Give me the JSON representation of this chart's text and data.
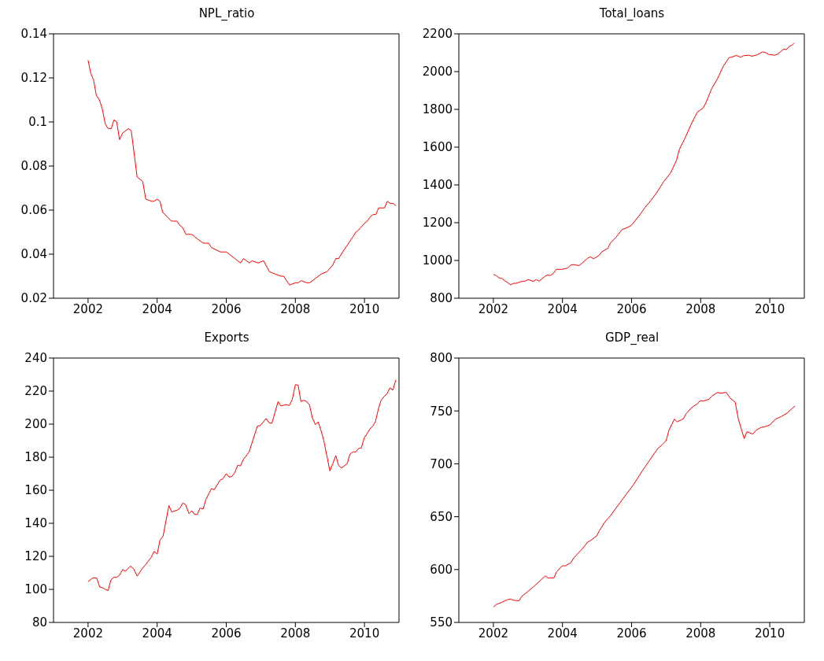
{
  "chart_data": [
    {
      "type": "line",
      "title": "NPL_ratio",
      "marker": "none",
      "xlim": [
        2001,
        2011
      ],
      "xticks": [
        2002,
        2004,
        2006,
        2008,
        2010
      ],
      "ylim": [
        0.02,
        0.14
      ],
      "yticks": [
        0.02,
        0.04,
        0.06,
        0.08,
        0.1,
        0.12,
        0.14
      ],
      "x": [
        2002.0,
        2002.08,
        2002.16,
        2002.24,
        2002.33,
        2002.41,
        2002.5,
        2002.58,
        2002.67,
        2002.75,
        2002.83,
        2002.91,
        2003.0,
        2003.17,
        2003.25,
        2003.42,
        2003.58,
        2003.67,
        2003.83,
        2003.91,
        2004.0,
        2004.08,
        2004.16,
        2004.41,
        2004.49,
        2004.57,
        2004.66,
        2004.74,
        2004.83,
        2005.0,
        2005.16,
        2005.33,
        2005.41,
        2005.49,
        2005.57,
        2005.83,
        2005.91,
        2006.0,
        2006.17,
        2006.25,
        2006.41,
        2006.5,
        2006.67,
        2006.75,
        2006.92,
        2007.08,
        2007.25,
        2007.41,
        2007.58,
        2007.66,
        2007.83,
        2008.0,
        2008.08,
        2008.17,
        2008.33,
        2008.41,
        2008.5,
        2008.58,
        2008.75,
        2008.91,
        2009.08,
        2009.17,
        2009.25,
        2009.41,
        2009.5,
        2009.67,
        2009.75,
        2009.83,
        2010.0,
        2010.08,
        2010.17,
        2010.25,
        2010.33,
        2010.41,
        2010.5,
        2010.58,
        2010.66,
        2010.75,
        2010.83,
        2010.91
      ],
      "series": [
        {
          "color": "#ff0000",
          "values": [
            0.128,
            0.122,
            0.119,
            0.112,
            0.11,
            0.106,
            0.099,
            0.097,
            0.097,
            0.101,
            0.1,
            0.092,
            0.095,
            0.097,
            0.096,
            0.075,
            0.073,
            0.065,
            0.064,
            0.064,
            0.065,
            0.064,
            0.059,
            0.055,
            0.055,
            0.055,
            0.053,
            0.052,
            0.049,
            0.049,
            0.047,
            0.045,
            0.045,
            0.045,
            0.043,
            0.041,
            0.041,
            0.041,
            0.039,
            0.038,
            0.036,
            0.038,
            0.036,
            0.037,
            0.036,
            0.037,
            0.032,
            0.031,
            0.03,
            0.03,
            0.026,
            0.027,
            0.027,
            0.028,
            0.027,
            0.027,
            0.028,
            0.029,
            0.031,
            0.032,
            0.035,
            0.038,
            0.038,
            0.042,
            0.044,
            0.048,
            0.05,
            0.051,
            0.054,
            0.055,
            0.057,
            0.058,
            0.058,
            0.061,
            0.061,
            0.061,
            0.064,
            0.063,
            0.063,
            0.062
          ]
        }
      ]
    },
    {
      "type": "line",
      "title": "Total_loans",
      "marker": "none",
      "xlim": [
        2001,
        2011
      ],
      "xticks": [
        2002,
        2004,
        2006,
        2008,
        2010
      ],
      "ylim": [
        800,
        2200
      ],
      "yticks": [
        800,
        1000,
        1200,
        1400,
        1600,
        1800,
        2000,
        2200
      ],
      "x": [
        2002.0,
        2002.08,
        2002.16,
        2002.24,
        2002.33,
        2002.5,
        2002.58,
        2002.66,
        2002.83,
        2002.91,
        2003.0,
        2003.16,
        2003.24,
        2003.32,
        2003.49,
        2003.57,
        2003.65,
        2003.74,
        2003.82,
        2003.99,
        2004.15,
        2004.23,
        2004.31,
        2004.48,
        2004.56,
        2004.73,
        2004.81,
        2004.9,
        2005.06,
        2005.14,
        2005.31,
        2005.39,
        2005.55,
        2005.72,
        2005.88,
        2005.99,
        2006.22,
        2006.39,
        2006.55,
        2006.72,
        2006.92,
        2007.13,
        2007.3,
        2007.38,
        2007.55,
        2007.72,
        2007.9,
        2008.07,
        2008.15,
        2008.32,
        2008.48,
        2008.65,
        2008.82,
        2008.9,
        2009.03,
        2009.15,
        2009.23,
        2009.4,
        2009.48,
        2009.65,
        2009.78,
        2009.86,
        2009.98,
        2010.15,
        2010.23,
        2010.4,
        2010.48,
        2010.56,
        2010.65,
        2010.7
      ],
      "series": [
        {
          "color": "#ff0000",
          "values": [
            926,
            920,
            908,
            905,
            893,
            871,
            879,
            879,
            890,
            890,
            899,
            889,
            899,
            890,
            916,
            923,
            920,
            933,
            953,
            953,
            960,
            975,
            978,
            973,
            985,
            1012,
            1019,
            1009,
            1027,
            1046,
            1064,
            1093,
            1123,
            1163,
            1175,
            1185,
            1237,
            1281,
            1316,
            1357,
            1415,
            1464,
            1530,
            1587,
            1649,
            1719,
            1785,
            1807,
            1834,
            1911,
            1960,
            2027,
            2074,
            2077,
            2086,
            2076,
            2084,
            2087,
            2081,
            2090,
            2104,
            2102,
            2090,
            2087,
            2093,
            2119,
            2117,
            2133,
            2141,
            2150
          ]
        }
      ]
    },
    {
      "type": "line",
      "title": "Exports",
      "marker": "none",
      "xlim": [
        2001,
        2011
      ],
      "xticks": [
        2002,
        2004,
        2006,
        2008,
        2010
      ],
      "ylim": [
        80,
        240
      ],
      "yticks": [
        80,
        100,
        120,
        140,
        160,
        180,
        200,
        220,
        240
      ],
      "x": [
        2002.0,
        2002.1,
        2002.17,
        2002.25,
        2002.34,
        2002.42,
        2002.5,
        2002.58,
        2002.66,
        2002.74,
        2002.83,
        2002.91,
        2003.0,
        2003.08,
        2003.23,
        2003.32,
        2003.42,
        2003.57,
        2003.65,
        2003.82,
        2003.91,
        2004.0,
        2004.08,
        2004.17,
        2004.34,
        2004.42,
        2004.58,
        2004.66,
        2004.74,
        2004.82,
        2004.92,
        2005.0,
        2005.08,
        2005.16,
        2005.24,
        2005.33,
        2005.41,
        2005.57,
        2005.65,
        2005.82,
        2005.9,
        2006.0,
        2006.08,
        2006.16,
        2006.25,
        2006.33,
        2006.41,
        2006.49,
        2006.66,
        2006.9,
        2006.99,
        2007.15,
        2007.24,
        2007.32,
        2007.5,
        2007.58,
        2007.74,
        2007.82,
        2007.91,
        2008.0,
        2008.08,
        2008.16,
        2008.25,
        2008.33,
        2008.41,
        2008.49,
        2008.58,
        2008.66,
        2008.74,
        2008.82,
        2009.0,
        2009.08,
        2009.17,
        2009.25,
        2009.33,
        2009.5,
        2009.58,
        2009.67,
        2009.75,
        2009.83,
        2009.91,
        2009.99,
        2010.16,
        2010.24,
        2010.32,
        2010.4,
        2010.48,
        2010.57,
        2010.65,
        2010.74,
        2010.82,
        2010.91
      ],
      "series": [
        {
          "color": "#ff0000",
          "values": [
            104.7,
            106.4,
            107.1,
            106.8,
            101.4,
            101.0,
            100.0,
            99.2,
            105.6,
            107.3,
            107.3,
            108.6,
            112.0,
            111.0,
            114.1,
            112.4,
            108.0,
            112.7,
            114.6,
            119.2,
            122.9,
            121.4,
            129.7,
            132.2,
            150.8,
            146.8,
            148.0,
            149.2,
            152.2,
            151.4,
            145.9,
            147.6,
            145.4,
            145.3,
            149.2,
            148.6,
            154.4,
            161.0,
            160.3,
            166.1,
            166.9,
            170.0,
            168.0,
            168.3,
            170.8,
            175.1,
            174.7,
            178.5,
            183.1,
            198.8,
            199.2,
            203.4,
            200.8,
            200.5,
            213.7,
            211.0,
            211.9,
            211.2,
            214.9,
            223.9,
            223.6,
            213.7,
            214.4,
            213.6,
            211.5,
            203.9,
            199.7,
            201.4,
            196.3,
            190.3,
            171.7,
            175.9,
            181.0,
            175.1,
            173.4,
            176.1,
            181.9,
            183.2,
            183.2,
            185.3,
            185.6,
            191.5,
            197.1,
            198.8,
            201.7,
            209.0,
            214.4,
            216.8,
            218.3,
            222.0,
            220.5,
            226.8
          ]
        }
      ]
    },
    {
      "type": "line",
      "title": "GDP_real",
      "marker": "none",
      "xlim": [
        2001,
        2011
      ],
      "xticks": [
        2002,
        2004,
        2006,
        2008,
        2010
      ],
      "ylim": [
        550,
        800
      ],
      "yticks": [
        550,
        600,
        650,
        700,
        750,
        800
      ],
      "x": [
        2002.0,
        2002.08,
        2002.24,
        2002.4,
        2002.49,
        2002.57,
        2002.74,
        2002.82,
        2002.98,
        2003.23,
        2003.5,
        2003.58,
        2003.75,
        2003.83,
        2003.99,
        2004.08,
        2004.24,
        2004.33,
        2004.56,
        2004.73,
        2004.82,
        2004.99,
        2005.07,
        2005.23,
        2005.39,
        2005.56,
        2005.81,
        2006.05,
        2006.31,
        2006.55,
        2006.76,
        2006.88,
        2007.0,
        2007.08,
        2007.24,
        2007.32,
        2007.5,
        2007.58,
        2007.74,
        2007.91,
        2007.99,
        2008.08,
        2008.24,
        2008.32,
        2008.49,
        2008.57,
        2008.74,
        2008.85,
        2009.0,
        2009.09,
        2009.26,
        2009.34,
        2009.51,
        2009.6,
        2009.76,
        2009.85,
        2010.0,
        2010.17,
        2010.33,
        2010.5,
        2010.73
      ],
      "series": [
        {
          "color": "#ff0000",
          "values": [
            564.5,
            566.9,
            569.0,
            571.4,
            572.2,
            571.1,
            570.4,
            574.6,
            578.8,
            585.7,
            594.0,
            592.1,
            592.1,
            597.9,
            603.5,
            603.5,
            606.4,
            611.2,
            619.1,
            626.0,
            627.6,
            631.8,
            636.9,
            645.1,
            650.9,
            658.6,
            669.7,
            680.0,
            693.3,
            704.7,
            714.5,
            717.9,
            721.9,
            731.7,
            742.3,
            739.7,
            742.6,
            747.4,
            753.2,
            756.9,
            759.8,
            759.3,
            761.1,
            764.0,
            767.5,
            766.7,
            767.5,
            762.2,
            758.2,
            742.3,
            723.8,
            730.4,
            728.0,
            731.7,
            734.6,
            734.9,
            736.8,
            742.3,
            744.7,
            747.9,
            754.8
          ]
        }
      ]
    }
  ]
}
